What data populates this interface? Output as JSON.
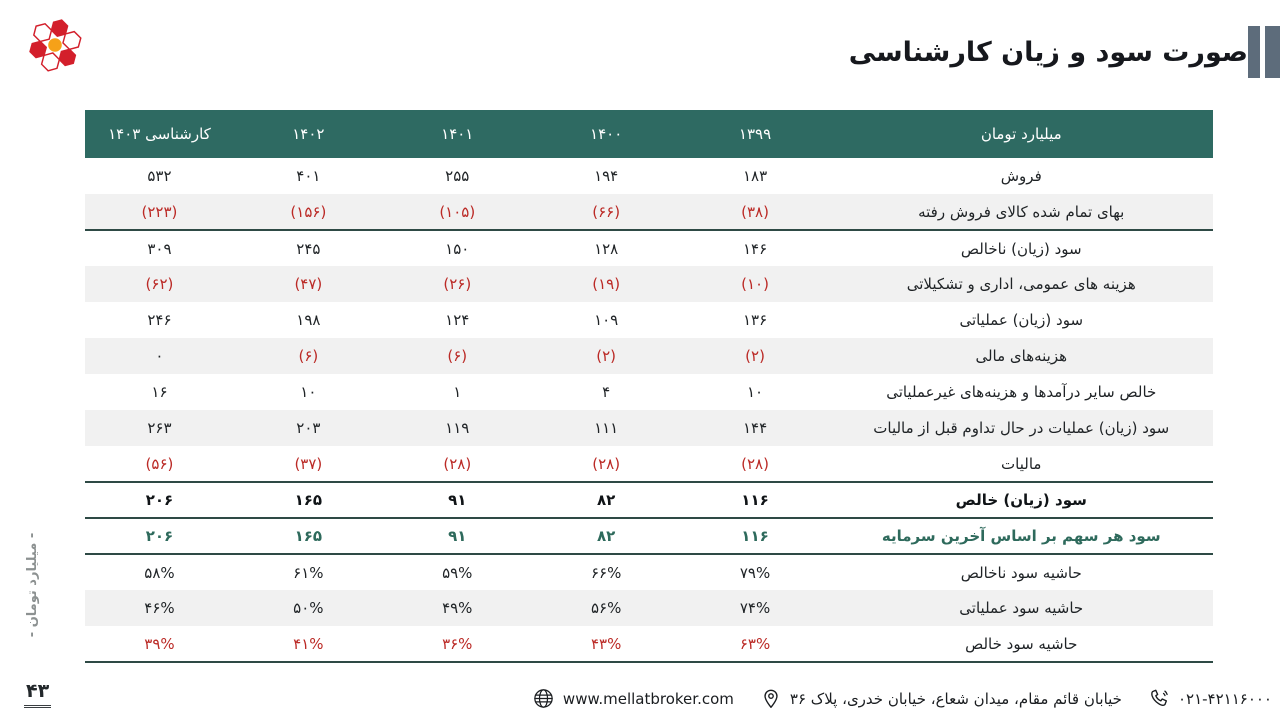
{
  "page": {
    "title": "صورت سود و زیان کارشناسی",
    "page_number": "۴۳",
    "side_unit_label": "- میلیارد تومان -"
  },
  "colors": {
    "header_bg": "#2e6a62",
    "stripe": "#f1f1f1",
    "negative_red": "#bb2a26",
    "teal_text": "#2e6a5c",
    "rule_line": "#2e4a45",
    "title_bars": "#5d6c7b",
    "logo_red": "#d31f2b",
    "logo_orange": "#f6a118"
  },
  "table": {
    "header": [
      "میلیارد تومان",
      "۱۳۹۹",
      "۱۴۰۰",
      "۱۴۰۱",
      "۱۴۰۲",
      "کارشناسی ۱۴۰۳"
    ],
    "rows": [
      {
        "label": "فروش",
        "values": [
          "۱۸۳",
          "۱۹۴",
          "۲۵۵",
          "۴۰۱",
          "۵۳۲"
        ],
        "cell_class": [
          "",
          "",
          "",
          "",
          ""
        ],
        "label_class": "",
        "shaded": false,
        "rule": false
      },
      {
        "label": "بهای تمام شده کالای فروش رفته",
        "values": [
          "(۳۸)",
          "(۶۶)",
          "(۱۰۵)",
          "(۱۵۶)",
          "(۲۲۳)"
        ],
        "cell_class": [
          "neg",
          "neg",
          "neg",
          "neg",
          "neg"
        ],
        "label_class": "",
        "shaded": true,
        "rule": true
      },
      {
        "label": "سود (زیان) ناخالص",
        "values": [
          "۱۴۶",
          "۱۲۸",
          "۱۵۰",
          "۲۴۵",
          "۳۰۹"
        ],
        "cell_class": [
          "",
          "",
          "",
          "",
          ""
        ],
        "label_class": "",
        "shaded": false,
        "rule": false
      },
      {
        "label": "هزینه های عمومی، اداری و تشکیلاتی",
        "values": [
          "(۱۰)",
          "(۱۹)",
          "(۲۶)",
          "(۴۷)",
          "(۶۲)"
        ],
        "cell_class": [
          "neg",
          "neg",
          "neg",
          "neg",
          "neg"
        ],
        "label_class": "",
        "shaded": true,
        "rule": false
      },
      {
        "label": "سود (زیان) عملیاتی",
        "values": [
          "۱۳۶",
          "۱۰۹",
          "۱۲۴",
          "۱۹۸",
          "۲۴۶"
        ],
        "cell_class": [
          "",
          "",
          "",
          "",
          ""
        ],
        "label_class": "",
        "shaded": false,
        "rule": false
      },
      {
        "label": "هزینه‌های مالی",
        "values": [
          "(۲)",
          "(۲)",
          "(۶)",
          "(۶)",
          "۰"
        ],
        "cell_class": [
          "neg",
          "neg",
          "neg",
          "neg",
          ""
        ],
        "label_class": "",
        "shaded": true,
        "rule": false
      },
      {
        "label": "خالص سایر درآمدها و هزینه‌های غیرعملیاتی",
        "values": [
          "۱۰",
          "۴",
          "۱",
          "۱۰",
          "۱۶"
        ],
        "cell_class": [
          "",
          "",
          "",
          "",
          ""
        ],
        "label_class": "",
        "shaded": false,
        "rule": false
      },
      {
        "label": "سود (زیان) عملیات در حال تداوم قبل از مالیات",
        "values": [
          "۱۴۴",
          "۱۱۱",
          "۱۱۹",
          "۲۰۳",
          "۲۶۳"
        ],
        "cell_class": [
          "",
          "",
          "",
          "",
          ""
        ],
        "label_class": "",
        "shaded": true,
        "rule": false
      },
      {
        "label": "مالیات",
        "values": [
          "(۲۸)",
          "(۲۸)",
          "(۲۸)",
          "(۳۷)",
          "(۵۶)"
        ],
        "cell_class": [
          "neg",
          "neg",
          "neg",
          "neg",
          "neg"
        ],
        "label_class": "",
        "shaded": false,
        "rule": true
      },
      {
        "label": "سود (زیان) خالص",
        "values": [
          "۱۱۶",
          "۸۲",
          "۹۱",
          "۱۶۵",
          "۲۰۶"
        ],
        "cell_class": [
          "bold",
          "bold",
          "bold",
          "bold",
          "bold"
        ],
        "label_class": "bold",
        "shaded": false,
        "rule": true
      },
      {
        "label": "سود هر سهم بر اساس آخرین سرمایه",
        "values": [
          "۱۱۶",
          "۸۲",
          "۹۱",
          "۱۶۵",
          "۲۰۶"
        ],
        "cell_class": [
          "teal",
          "teal",
          "teal",
          "teal",
          "teal"
        ],
        "label_class": "teal",
        "shaded": false,
        "rule": true
      },
      {
        "label": "حاشیه سود ناخالص",
        "values": [
          "۷۹%",
          "۶۶%",
          "۵۹%",
          "۶۱%",
          "۵۸%"
        ],
        "cell_class": [
          "",
          "",
          "",
          "",
          ""
        ],
        "label_class": "",
        "shaded": false,
        "rule": false
      },
      {
        "label": "حاشیه سود عملیاتی",
        "values": [
          "۷۴%",
          "۵۶%",
          "۴۹%",
          "۵۰%",
          "۴۶%"
        ],
        "cell_class": [
          "",
          "",
          "",
          "",
          ""
        ],
        "label_class": "",
        "shaded": true,
        "rule": false
      },
      {
        "label": "حاشیه سود خالص",
        "values": [
          "۶۳%",
          "۴۳%",
          "۳۶%",
          "۴۱%",
          "۳۹%"
        ],
        "cell_class": [
          "neg",
          "neg",
          "neg",
          "neg",
          "neg"
        ],
        "label_class": "",
        "shaded": false,
        "rule": true
      }
    ]
  },
  "footer": {
    "phone": "۰۲۱-۴۲۱۱۶۰۰۰",
    "address": "خیابان قائم مقام، میدان شعاع، خیابان خدری، پلاک ۳۶",
    "website": "www.mellatbroker.com"
  }
}
